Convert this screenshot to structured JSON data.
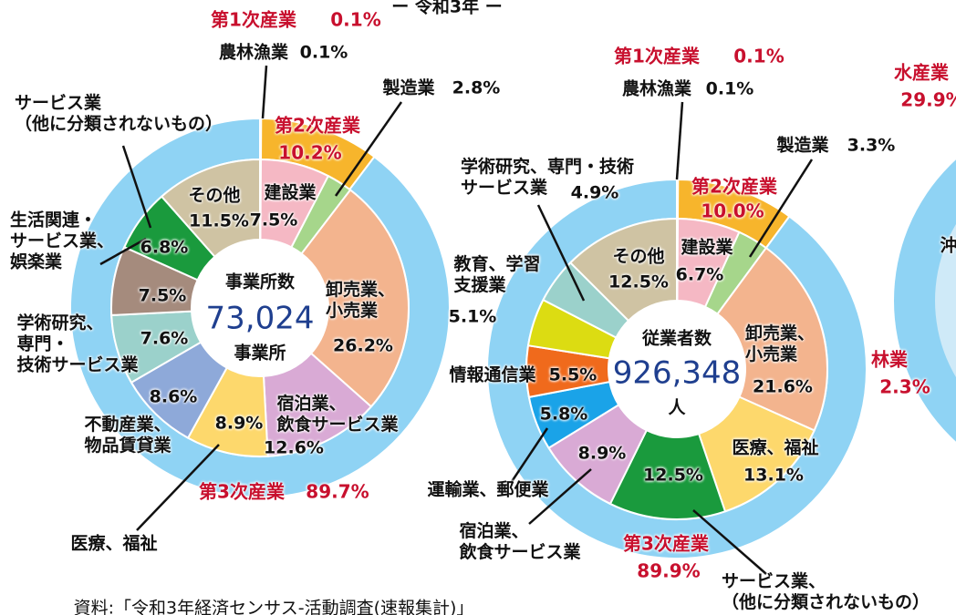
{
  "header": "ー 令和3年 ー",
  "source": "資料:「令和3年経済センサス-活動調査(速報集計)」",
  "fragments": [
    "水産業",
    "29.9%",
    "林業",
    "2.3%",
    "沖"
  ],
  "chart_data": [
    {
      "type": "donut",
      "center_title": "事業所数",
      "total": "73,024",
      "unit": "事業所",
      "categories": [
        "農林漁業",
        "建設業",
        "製造業",
        "卸売業、\n小売業",
        "宿泊業、\n飲食サービス業",
        "医療、福祉",
        "不動産業、\n物品賃貸業",
        "学術研究、\n専門・\n技術サービス業",
        "生活関連・\nサービス業、\n娯楽業",
        "サービス業\n（他に分類されないもの）",
        "その他"
      ],
      "values": [
        0.1,
        7.5,
        2.8,
        26.2,
        12.6,
        8.9,
        8.6,
        7.6,
        7.5,
        6.8,
        11.5
      ],
      "value_labels": [
        "0.1%",
        "7.5%",
        "2.8%",
        "26.2%",
        "12.6%",
        "8.9%",
        "8.6%",
        "7.6%",
        "7.5%",
        "6.8%",
        "11.5%"
      ],
      "colors": [
        "#d7263d",
        "#f5b8c4",
        "#a6d68b",
        "#f3b48e",
        "#d9aad5",
        "#fdd86c",
        "#8ea9d9",
        "#9bd1cb",
        "#a58b7d",
        "#1a9a3d",
        "#cfc3a3"
      ],
      "outer": {
        "categories": [
          "第1次産業",
          "第2次産業",
          "第3次産業"
        ],
        "values": [
          0.1,
          10.2,
          89.7
        ],
        "value_labels": [
          "0.1%",
          "10.2%",
          "89.7%"
        ],
        "colors": [
          "#8fd3f4",
          "#f7b52c",
          "#8fd3f4"
        ]
      }
    },
    {
      "type": "donut",
      "center_title": "従業者数",
      "total": "926,348",
      "unit": "人",
      "categories": [
        "農林漁業",
        "建設業",
        "製造業",
        "卸売業、\n小売業",
        "医療、福祉",
        "サービス業、\n（他に分類されないもの）",
        "宿泊業、\n飲食サービス業",
        "運輸業、郵便業",
        "情報通信業",
        "教育、学習\n支援業",
        "学術研究、専門・技術\nサービス業",
        "その他"
      ],
      "values": [
        0.1,
        6.7,
        3.3,
        21.6,
        13.1,
        12.5,
        8.9,
        5.8,
        5.5,
        5.1,
        4.9,
        12.5
      ],
      "value_labels": [
        "0.1%",
        "6.7%",
        "3.3%",
        "21.6%",
        "13.1%",
        "12.5%",
        "8.9%",
        "5.8%",
        "5.5%",
        "5.1%",
        "4.9%",
        "12.5%"
      ],
      "colors": [
        "#d7263d",
        "#f5b8c4",
        "#a6d68b",
        "#f3b48e",
        "#fdd86c",
        "#1a9a3d",
        "#d9aad5",
        "#1aa3e8",
        "#f06a1c",
        "#dcdc12",
        "#9bd1cb",
        "#cfc3a3"
      ],
      "outer": {
        "categories": [
          "第1次産業",
          "第2次産業",
          "第3次産業"
        ],
        "values": [
          0.1,
          10.0,
          89.9
        ],
        "value_labels": [
          "0.1%",
          "10.0%",
          "89.9%"
        ],
        "colors": [
          "#8fd3f4",
          "#f7b52c",
          "#8fd3f4"
        ]
      }
    }
  ]
}
